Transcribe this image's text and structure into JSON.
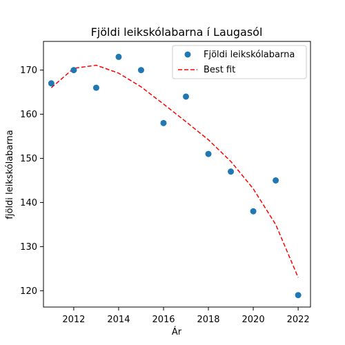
{
  "chart_data": {
    "type": "scatter",
    "title": "Fjöldi leikskólabarna í Laugasól",
    "xlabel": "Ár",
    "ylabel": "fjöldi leikskólabarna",
    "xlim": [
      2010.65,
      2022.55
    ],
    "ylim": [
      116.3,
      176.5
    ],
    "x_ticks": [
      2012,
      2014,
      2016,
      2018,
      2020,
      2022
    ],
    "y_ticks": [
      120,
      130,
      140,
      150,
      160,
      170
    ],
    "grid": false,
    "legend_position": "top-right",
    "series": [
      {
        "name": "Fjöldi leikskólabarna",
        "kind": "scatter",
        "color": "#1f77b4",
        "x": [
          2011,
          2012,
          2013,
          2014,
          2015,
          2016,
          2017,
          2018,
          2019,
          2020,
          2021,
          2022
        ],
        "y": [
          167,
          170,
          166,
          173,
          170,
          158,
          164,
          151,
          147,
          138,
          145,
          119
        ]
      },
      {
        "name": "Best fit",
        "kind": "line",
        "style": "dashed",
        "color": "#ff0000",
        "x": [
          2011,
          2012,
          2013,
          2014,
          2015,
          2016,
          2017,
          2018,
          2019,
          2020,
          2021,
          2022
        ],
        "y": [
          166,
          170.4,
          171.1,
          169.3,
          166.2,
          162.3,
          158.3,
          154.2,
          149.3,
          143.1,
          135,
          123
        ]
      }
    ]
  }
}
